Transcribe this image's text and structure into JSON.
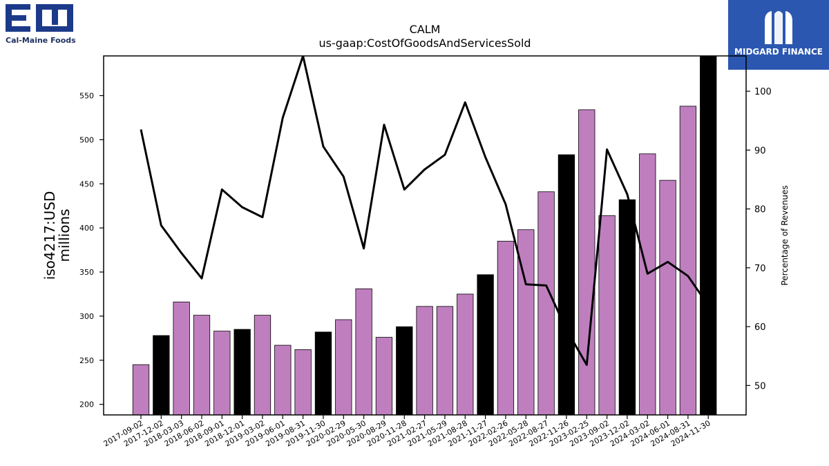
{
  "logos": {
    "left_text": "Cal-Maine Foods",
    "left_mark": "EM",
    "right_text": "MIDGARD FINANCE",
    "right_color": "#2b57b0",
    "left_color": "#1c3a8a"
  },
  "chart_data": {
    "type": "bar",
    "title": "CALM",
    "subtitle": "us-gaap:CostOfGoodsAndServicesSold",
    "ylabel": "iso4217:USD\nmillions",
    "y2label": "Percentage of Revenues",
    "ylim": [
      188,
      595
    ],
    "y2lim": [
      45,
      106
    ],
    "yticks": [
      200,
      250,
      300,
      350,
      400,
      450,
      500,
      550
    ],
    "y2ticks": [
      50,
      60,
      70,
      80,
      90,
      100
    ],
    "grid": false,
    "bar_colors": {
      "default": "#bf7fbf",
      "highlight": "#000000"
    },
    "categories": [
      "2017-09-02",
      "2017-12-02",
      "2018-03-03",
      "2018-06-02",
      "2018-09-01",
      "2018-12-01",
      "2019-03-02",
      "2019-06-01",
      "2019-08-31",
      "2019-11-30",
      "2020-02-29",
      "2020-05-30",
      "2020-08-29",
      "2020-11-28",
      "2021-02-27",
      "2021-05-29",
      "2021-08-28",
      "2021-11-27",
      "2022-02-26",
      "2022-05-28",
      "2022-08-27",
      "2022-11-26",
      "2023-02-25",
      "2023-09-02",
      "2023-12-02",
      "2024-03-02",
      "2024-06-01",
      "2024-08-31",
      "2024-11-30"
    ],
    "series": [
      {
        "type": "bar",
        "values": [
          245,
          278,
          316,
          301,
          283,
          285,
          301,
          267,
          262,
          282,
          296,
          331,
          276,
          288,
          311,
          311,
          325,
          347,
          385,
          398,
          441,
          483,
          534,
          414,
          432,
          484,
          454,
          538,
          595
        ],
        "highlight": [
          false,
          true,
          false,
          false,
          false,
          true,
          false,
          false,
          false,
          true,
          false,
          false,
          false,
          true,
          false,
          false,
          false,
          true,
          false,
          false,
          false,
          true,
          false,
          false,
          true,
          false,
          false,
          false,
          true
        ]
      },
      {
        "type": "line",
        "axis": "right",
        "color": "#000000",
        "values": [
          93.5,
          77.2,
          72.5,
          68.2,
          83.3,
          80.3,
          78.6,
          95.5,
          106,
          90.6,
          85.5,
          73.3,
          94.3,
          83.3,
          86.7,
          89.2,
          98.1,
          88.8,
          80.8,
          67.2,
          67.0,
          59.5,
          53.5,
          90.1,
          82.5,
          69.0,
          71.0,
          68.6,
          63.6
        ]
      }
    ]
  }
}
